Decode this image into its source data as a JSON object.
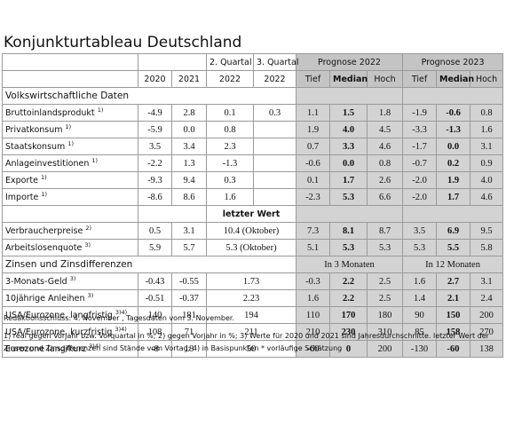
{
  "title": "Konjunkturtableau Deutschland",
  "table": {
    "header": {
      "quarter": [
        "2. Quartal",
        "3. Quartal"
      ],
      "forecast": [
        "Prognose 2022",
        "Prognose 2023"
      ],
      "columns": [
        "2020",
        "2021",
        "2022",
        "2022",
        "Tief",
        "Median",
        "Hoch",
        "Tief",
        "Median",
        "Hoch"
      ]
    },
    "blocks": [
      {
        "section": "Volkswirtschaftliche Daten"
      },
      {
        "label": "Bruttoinlandsprodukt",
        "note": "1)",
        "values": [
          "-4.9",
          "2.8",
          "0.1",
          "0.3",
          "1.1",
          "1.5",
          "1.8",
          "-1.9",
          "-0.6",
          "0.8"
        ]
      },
      {
        "label": "Privatkonsum",
        "note": "1)",
        "values": [
          "-5.9",
          "0.0",
          "0.8",
          null,
          "1.9",
          "4.0",
          "4.5",
          "-3.3",
          "-1.3",
          "1.6"
        ]
      },
      {
        "label": "Staatskonsum",
        "note": "1)",
        "values": [
          "3.5",
          "3.4",
          "2.3",
          null,
          "0.7",
          "3.3",
          "4.6",
          "-1.7",
          "0.0",
          "3.1"
        ]
      },
      {
        "label": "Anlageinvestitionen",
        "note": "1)",
        "values": [
          "-2.2",
          "1.3",
          "-1.3",
          null,
          "-0.6",
          "0.0",
          "0.8",
          "-0.7",
          "0.2",
          "0.9"
        ]
      },
      {
        "label": "Exporte",
        "note": "1)",
        "values": [
          "-9.3",
          "9.4",
          "0.3",
          null,
          "0.1",
          "1.7",
          "2.6",
          "-2.0",
          "1.9",
          "4.0"
        ]
      },
      {
        "label": "Importe",
        "note": "1)",
        "values": [
          "-8.6",
          "8.6",
          "1.6",
          null,
          "-2.3",
          "5.3",
          "6.6",
          "-2.0",
          "1.7",
          "4.6"
        ]
      },
      {
        "subheader": "letzter Wert"
      },
      {
        "label": "Verbraucherpreise",
        "note": "2)",
        "values": [
          "0.5",
          "3.1",
          "10.4 (Oktober)",
          "7.3",
          "8.1",
          "8.7",
          "3.5",
          "6.9",
          "9.5"
        ]
      },
      {
        "label": "Arbeitslosenquote",
        "note": "3)",
        "values": [
          "5.9",
          "5.7",
          "5.3 (Oktober)",
          "5.1",
          "5.3",
          "5.3",
          "5.3",
          "5.5",
          "5.8"
        ]
      },
      {
        "section": "Zinsen und Zinsdifferenzen",
        "forecast": [
          "In 3 Monaten",
          "In 12 Monaten"
        ]
      },
      {
        "label": "3-Monats-Geld",
        "note": "3)",
        "values": [
          "-0.43",
          "-0.55",
          "1.73",
          "-0.3",
          "2.2",
          "2.5",
          "1.6",
          "2.7",
          "3.1"
        ]
      },
      {
        "label": "10jährige Anleihen",
        "note": "3)",
        "values": [
          "-0.51",
          "-0.37",
          "2.23",
          "1.6",
          "2.2",
          "2.5",
          "1.4",
          "2.1",
          "2.4"
        ]
      },
      {
        "label": "USA/Eurozone, langfristig",
        "note": "3)4)",
        "values": [
          "140",
          "181",
          "194",
          "110",
          "170",
          "180",
          "90",
          "150",
          "200"
        ]
      },
      {
        "label": "USA/Eurozone, kurzfristig",
        "note": "3)4)",
        "values": [
          "108",
          "71",
          "211",
          "210",
          "230",
          "310",
          "85",
          "158",
          "270"
        ]
      },
      {
        "label": "Eurozone lang/kurz",
        "note": "3)4)",
        "values": [
          "-8",
          "18",
          "50",
          "-60",
          "0",
          "200",
          "-130",
          "-60",
          "138"
        ]
      }
    ]
  },
  "footer": {
    "deadline": "Redaktionsschluss: 4. November , Tagesdaten vom 3. November.",
    "notes": "1) real gegen Vorjahr bzw. Vorquartal in %; 2) gegen Vorjahr in %; 3) Werte für 2020 und 2021 sind Jahresdurchschnitte. letzter Wert der Zinsen und Zinsdifferenzen sind Stände vom Vortag; 4) in Basispunkten * vorläufige Schätzung"
  }
}
